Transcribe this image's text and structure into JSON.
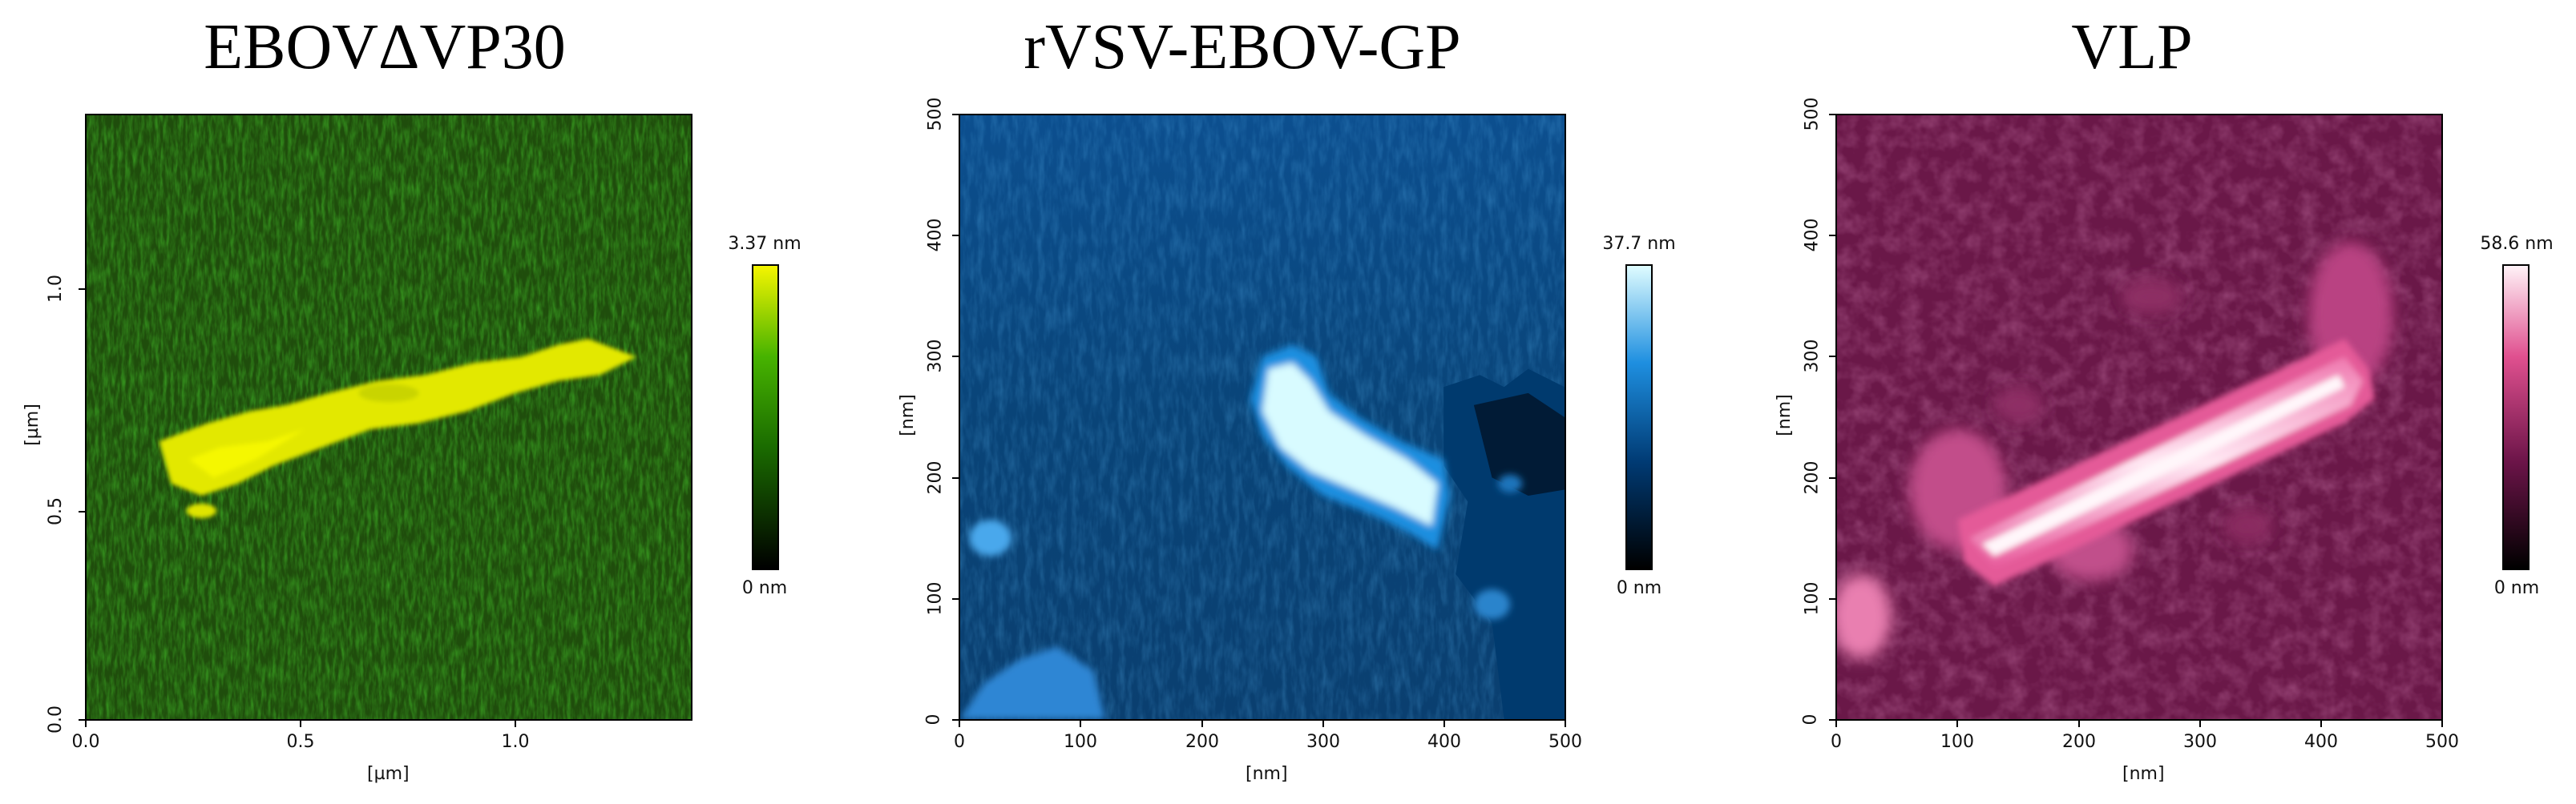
{
  "panels": [
    {
      "title": "EBOVΔVP30",
      "x_ticks": [
        "0.0",
        "0.5",
        "1.0"
      ],
      "y_ticks": [
        "0.0",
        "0.5",
        "1.0"
      ],
      "x_label": "[µm]",
      "y_label": "[µm]",
      "colorbar_max": "3.37 nm",
      "colorbar_min": "0 nm",
      "colormap": [
        "#000000",
        "#1a6b00",
        "#47b300",
        "#f5f500"
      ]
    },
    {
      "title": "rVSV-EBOV-GP",
      "x_ticks": [
        "0",
        "100",
        "200",
        "300",
        "400",
        "500"
      ],
      "y_ticks": [
        "0",
        "100",
        "200",
        "300",
        "400",
        "500"
      ],
      "x_label": "[nm]",
      "y_label": "[nm]",
      "colorbar_max": "37.7 nm",
      "colorbar_min": "0 nm",
      "colormap": [
        "#000000",
        "#003a73",
        "#1e8fe0",
        "#dffcff"
      ]
    },
    {
      "title": "VLP",
      "x_ticks": [
        "0",
        "100",
        "200",
        "300",
        "400",
        "500"
      ],
      "y_ticks": [
        "0",
        "100",
        "200",
        "300",
        "400",
        "500"
      ],
      "x_label": "[nm]",
      "y_label": "[nm]",
      "colorbar_max": "58.6 nm",
      "colorbar_min": "0 nm",
      "colormap": [
        "#000000",
        "#6b1448",
        "#e0508f",
        "#fff2f7"
      ]
    }
  ]
}
